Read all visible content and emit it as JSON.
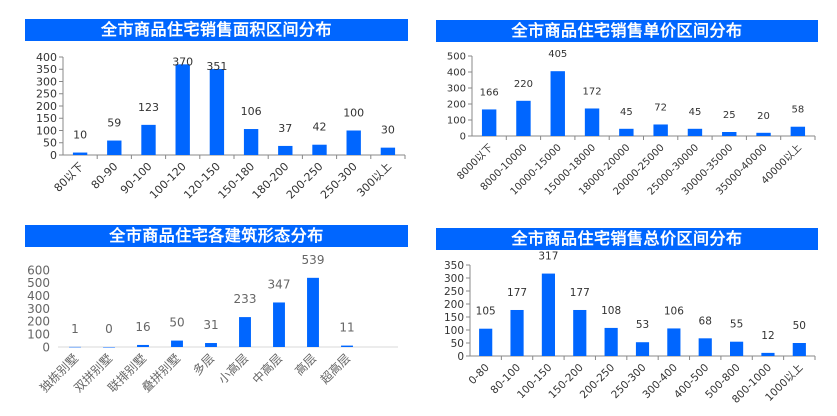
{
  "colors": {
    "bar": "#0066ff",
    "axis": "#888888"
  },
  "chart_data": [
    {
      "type": "bar",
      "title": "全市商品住宅销售面积区间分布",
      "categories": [
        "80以下",
        "80-90",
        "90-100",
        "100-120",
        "120-150",
        "150-180",
        "180-200",
        "200-250",
        "250-300",
        "300以上"
      ],
      "values": [
        10,
        59,
        123,
        370,
        351,
        106,
        37,
        42,
        100,
        30
      ],
      "ylim": [
        0,
        400
      ],
      "yticks": [
        0,
        50,
        100,
        150,
        200,
        250,
        300,
        350,
        400
      ],
      "xlabel": "",
      "ylabel": ""
    },
    {
      "type": "bar",
      "title": "全市商品住宅销售单价区间分布",
      "categories": [
        "8000以下",
        "8000-10000",
        "10000-15000",
        "15000-18000",
        "18000-20000",
        "20000-25000",
        "25000-30000",
        "30000-35000",
        "35000-40000",
        "40000以上"
      ],
      "values": [
        166,
        220,
        405,
        172,
        45,
        72,
        45,
        25,
        20,
        58
      ],
      "ylim": [
        0,
        500
      ],
      "yticks": [
        0,
        100,
        200,
        300,
        400,
        500
      ],
      "xlabel": "",
      "ylabel": ""
    },
    {
      "type": "bar",
      "title": "全市商品住宅各建筑形态分布",
      "categories": [
        "独栋别墅",
        "双拼别墅",
        "联排别墅",
        "叠拼别墅",
        "多层",
        "小高层",
        "中高层",
        "高层",
        "超高层"
      ],
      "values": [
        1,
        0,
        16,
        50,
        31,
        233,
        347,
        539,
        11
      ],
      "ylim": [
        0,
        600
      ],
      "yticks": [
        0,
        100,
        200,
        300,
        400,
        500,
        600
      ],
      "xlabel": "",
      "ylabel": ""
    },
    {
      "type": "bar",
      "title": "全市商品住宅销售总价区间分布",
      "categories": [
        "0-80",
        "80-100",
        "100-150",
        "150-200",
        "200-250",
        "250-300",
        "300-400",
        "400-500",
        "500-800",
        "800-1000",
        "1000以上"
      ],
      "values": [
        105,
        177,
        317,
        177,
        108,
        53,
        106,
        68,
        55,
        12,
        50
      ],
      "ylim": [
        0,
        350
      ],
      "yticks": [
        0,
        50,
        100,
        150,
        200,
        250,
        300,
        350
      ],
      "xlabel": "",
      "ylabel": ""
    }
  ]
}
